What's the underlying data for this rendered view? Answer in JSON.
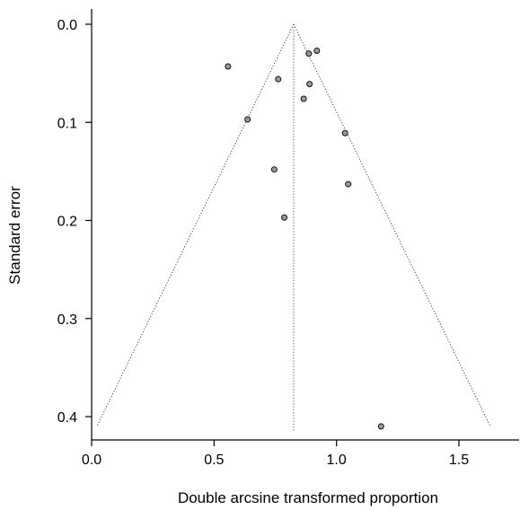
{
  "chart_data": {
    "type": "scatter",
    "title": "",
    "xlabel": "Double arcsine transformed proportion",
    "ylabel": "Standard error",
    "xlim": [
      0.0,
      1.75
    ],
    "ylim": [
      0.0,
      0.42
    ],
    "y_inverted": true,
    "xticks": [
      0.0,
      0.5,
      1.0,
      1.5
    ],
    "xtick_labels": [
      "0.0",
      "0.5",
      "1.0",
      "1.5"
    ],
    "yticks": [
      0.0,
      0.1,
      0.2,
      0.3,
      0.4
    ],
    "ytick_labels": [
      "0.0",
      "0.1",
      "0.2",
      "0.3",
      "0.4"
    ],
    "pooled_estimate": 0.825,
    "funnel_se_max": 0.41,
    "grid": false,
    "points": [
      {
        "x": 0.557,
        "y": 0.043
      },
      {
        "x": 0.762,
        "y": 0.056
      },
      {
        "x": 0.637,
        "y": 0.097
      },
      {
        "x": 0.746,
        "y": 0.148
      },
      {
        "x": 0.787,
        "y": 0.197
      },
      {
        "x": 0.866,
        "y": 0.076
      },
      {
        "x": 0.887,
        "y": 0.03
      },
      {
        "x": 0.92,
        "y": 0.027
      },
      {
        "x": 0.89,
        "y": 0.061
      },
      {
        "x": 1.035,
        "y": 0.111
      },
      {
        "x": 1.048,
        "y": 0.163
      },
      {
        "x": 1.182,
        "y": 0.41
      }
    ]
  }
}
